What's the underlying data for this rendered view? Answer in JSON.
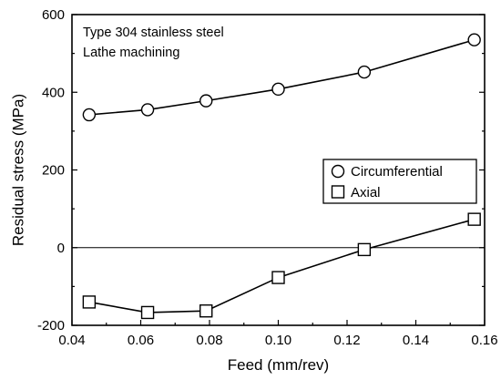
{
  "chart_data": {
    "type": "line",
    "xlabel": "Feed (mm/rev)",
    "ylabel": "Residual stress (MPa)",
    "xlim": [
      0.04,
      0.16
    ],
    "ylim": [
      -200,
      600
    ],
    "xticks": [
      0.04,
      0.06,
      0.08,
      0.1,
      0.12,
      0.14,
      0.16
    ],
    "xtick_labels": [
      "0.04",
      "0.06",
      "0.08",
      "0.10",
      "0.12",
      "0.14",
      "0.16"
    ],
    "yticks": [
      -200,
      0,
      200,
      400,
      600
    ],
    "ytick_labels": [
      "-200",
      "0",
      "200",
      "400",
      "600"
    ],
    "reference_line_y": 0,
    "annotations": [
      "Type 304 stainless steel",
      "Lathe machining"
    ],
    "legend_position": "center-right",
    "grid": false,
    "series": [
      {
        "name": "Circumferential",
        "marker": "circle",
        "x": [
          0.045,
          0.062,
          0.079,
          0.1,
          0.125,
          0.157
        ],
        "y": [
          342,
          355,
          378,
          408,
          452,
          535
        ]
      },
      {
        "name": "Axial",
        "marker": "square",
        "x": [
          0.045,
          0.062,
          0.079,
          0.1,
          0.125,
          0.157
        ],
        "y": [
          -140,
          -167,
          -163,
          -77,
          -5,
          73
        ]
      }
    ]
  }
}
